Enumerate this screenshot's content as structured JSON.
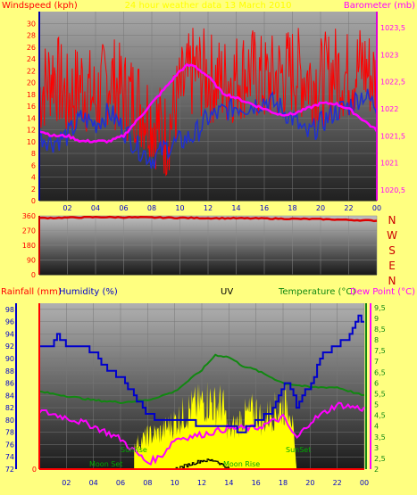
{
  "top_panel": {
    "title": "24 hour weather data 13 March 2010",
    "left_axis_label": "Windspeed (kph)",
    "right_axis_label": "Barometer (mb)"
  },
  "middle_panel": {
    "direction_labels": [
      "N",
      "W",
      "S",
      "E",
      "N"
    ]
  },
  "bottom_panel": {
    "labels": {
      "rainfall": "Rainfall (mm)",
      "humidity": "Humidity (%)",
      "uv": "UV",
      "temperature": "Temperature (°C)",
      "dewpoint": "Dew Point (°C)"
    },
    "annotations": [
      "Sunrise",
      "Moon Set",
      "Moon Rise",
      "SunSet"
    ]
  },
  "colors": {
    "background": "#ffff80",
    "windspeed": "#ff0000",
    "gust": "#2030d0",
    "barometer": "#ff00ff",
    "direction": "#dd0000",
    "humidity": "#0000cc",
    "temperature": "#118811",
    "dewpoint": "#ff00ff",
    "solar": "#ffff00",
    "uv": "#000000"
  },
  "chart_data": [
    {
      "type": "line",
      "x_ticks": [
        "02",
        "04",
        "06",
        "08",
        "10",
        "12",
        "14",
        "16",
        "18",
        "20",
        "22",
        "00"
      ],
      "y_left_ticks": [
        0,
        2,
        4,
        6,
        8,
        10,
        12,
        14,
        16,
        18,
        20,
        22,
        24,
        26,
        28,
        30
      ],
      "y_left_range": [
        0,
        32
      ],
      "y_right_ticks": [
        "1020,5",
        "1021",
        "1021,5",
        "1022",
        "1022,5",
        "1023",
        "1023,5"
      ],
      "y_right_range": [
        1020.3,
        1023.8
      ],
      "series": [
        {
          "axis": "left",
          "x": [
            0.0,
            1.0,
            2.0,
            3.0,
            4.0,
            5.0,
            6.0,
            7.0,
            8.0,
            9.0,
            10.0,
            11.0,
            12.0,
            13.0,
            14.0,
            15.0,
            16.0,
            17.0,
            18.0,
            19.0,
            20.0,
            21.0,
            22.0,
            23.0,
            24.0
          ],
          "values": [
            18,
            22,
            17,
            20,
            17,
            21,
            18,
            17,
            14,
            11,
            18,
            22,
            21,
            20,
            21,
            22,
            20,
            21,
            22,
            21,
            20,
            22,
            21,
            23,
            20
          ]
        },
        {
          "axis": "left",
          "x": [
            0.0,
            1.0,
            2.0,
            3.0,
            4.0,
            5.0,
            6.0,
            7.0,
            8.0,
            9.0,
            10.0,
            11.0,
            12.0,
            13.0,
            14.0,
            15.0,
            16.0,
            17.0,
            18.0,
            19.0,
            20.0,
            21.0,
            22.0,
            23.0,
            24.0
          ],
          "values": [
            11,
            10,
            11,
            14,
            13,
            15,
            12,
            9,
            7,
            9,
            10,
            11,
            14,
            15,
            16,
            16,
            17,
            16,
            14,
            11,
            13,
            15,
            16,
            18,
            16
          ]
        },
        {
          "axis": "right",
          "x": [
            0.0,
            1.0,
            2.0,
            3.0,
            4.0,
            5.0,
            6.0,
            7.0,
            8.0,
            9.0,
            10.0,
            10.5,
            11.0,
            12.0,
            13.0,
            14.0,
            15.0,
            16.0,
            17.0,
            18.0,
            19.0,
            20.0,
            21.0,
            22.0,
            23.0,
            24.0
          ],
          "values": [
            1021.6,
            1021.5,
            1021.5,
            1021.4,
            1021.4,
            1021.4,
            1021.5,
            1021.8,
            1022.1,
            1022.4,
            1022.7,
            1022.8,
            1022.8,
            1022.6,
            1022.3,
            1022.2,
            1022.1,
            1022.0,
            1021.9,
            1021.9,
            1022.0,
            1022.1,
            1022.1,
            1022.0,
            1021.8,
            1021.6
          ]
        }
      ]
    },
    {
      "type": "line",
      "x_ticks": [
        "02",
        "04",
        "06",
        "08",
        "10",
        "12",
        "14",
        "16",
        "18",
        "20",
        "22",
        "00"
      ],
      "y_ticks": [
        0,
        90,
        180,
        270,
        360
      ],
      "y_range": [
        0,
        360
      ],
      "series": [
        {
          "x": [
            0,
            4,
            8,
            12,
            16,
            20,
            24
          ],
          "values": [
            346,
            352,
            350,
            346,
            344,
            340,
            330
          ]
        }
      ]
    },
    {
      "type": "line",
      "x_ticks": [
        "02",
        "04",
        "06",
        "08",
        "10",
        "12",
        "14",
        "16",
        "18",
        "20",
        "22",
        "00"
      ],
      "y_left_ticks": [
        72,
        74,
        76,
        78,
        80,
        82,
        84,
        86,
        88,
        90,
        92,
        94,
        96,
        98
      ],
      "y_left_range": [
        72,
        99
      ],
      "y_rain_ticks": [
        0
      ],
      "y_right_ticks": [
        2,
        2.5,
        3,
        3.5,
        4,
        4.5,
        5,
        5.5,
        6,
        6.5,
        7,
        7.5,
        8,
        8.5,
        9,
        9.5
      ],
      "y_right_range": [
        2,
        9.7
      ],
      "series": [
        {
          "axis": "left",
          "x": [
            0,
            1,
            1.2,
            2,
            3,
            4,
            5,
            6,
            7,
            8,
            9,
            10,
            11,
            12,
            13,
            14,
            15,
            16,
            17,
            18,
            18.4,
            19,
            20,
            21,
            22,
            23,
            23.5,
            24
          ],
          "values": [
            92,
            92,
            94,
            92,
            92,
            91,
            88,
            87,
            84,
            81,
            80,
            80,
            80,
            79,
            79,
            79,
            78,
            80,
            81,
            86,
            86,
            82,
            86,
            91,
            92,
            94,
            97,
            96
          ]
        },
        {
          "axis": "right",
          "x": [
            0,
            2,
            4,
            6,
            8,
            10,
            12,
            13,
            14,
            15,
            16,
            18,
            20,
            22,
            24
          ],
          "values": [
            5.6,
            5.4,
            5.2,
            5.1,
            5.2,
            5.6,
            6.6,
            7.3,
            7.2,
            6.8,
            6.6,
            6.0,
            5.8,
            5.8,
            5.4
          ]
        },
        {
          "axis": "right",
          "x": [
            0,
            2,
            4,
            6,
            8,
            9,
            10,
            12,
            14,
            16,
            18,
            19,
            20,
            22,
            24
          ],
          "values": [
            4.7,
            4.4,
            4.0,
            3.4,
            2.3,
            2.6,
            3.4,
            3.6,
            3.9,
            3.9,
            4.4,
            3.4,
            4.2,
            5.0,
            4.8
          ]
        },
        {
          "x": [
            7,
            8,
            9,
            10,
            11,
            12,
            12.5,
            13,
            13.5,
            14,
            15,
            16,
            16.5,
            17,
            18,
            18.5,
            19
          ],
          "values": [
            3.3,
            3.8,
            4.0,
            4.6,
            5.2,
            5.6,
            5.8,
            5.4,
            5.6,
            4.0,
            4.8,
            5.2,
            4.6,
            5.0,
            5.4,
            5.8,
            2.0
          ]
        },
        {
          "x": [
            10,
            11,
            12,
            13,
            14
          ],
          "values": [
            2.0,
            2.2,
            2.4,
            2.4,
            2.0
          ]
        }
      ]
    }
  ]
}
